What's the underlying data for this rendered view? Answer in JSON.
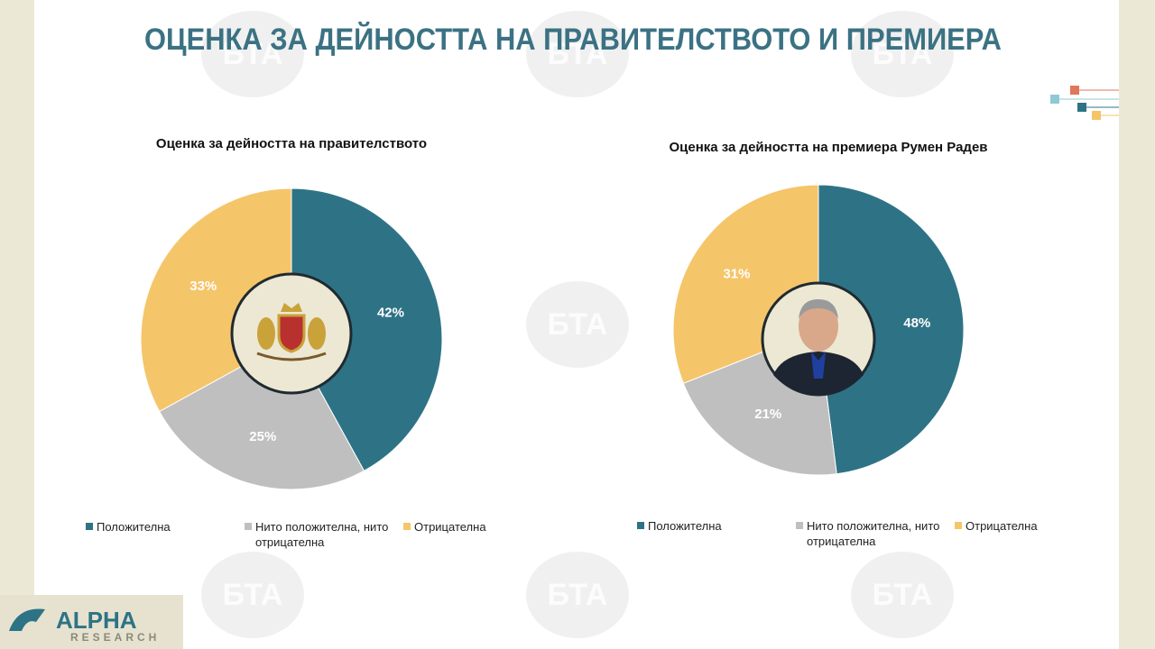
{
  "title": "ОЦЕНКА ЗА ДЕЙНОСТТА НА ПРАВИТЕЛСТВОТО И ПРЕМИЕРА",
  "watermark": "БТА",
  "logo": {
    "name": "ALPHA",
    "subtitle": "RESEARCH"
  },
  "chart_data": [
    {
      "type": "pie",
      "title": "Оценка за дейността на правителството",
      "categories": [
        "Положителна",
        "Нито положителна, нито отрицателна",
        "Отрицателна"
      ],
      "values": [
        42,
        25,
        33
      ],
      "value_labels": [
        "42%",
        "25%",
        "33%"
      ],
      "colors": [
        "#2e7385",
        "#bfbfbf",
        "#f5c56a"
      ],
      "legend": "bottom"
    },
    {
      "type": "pie",
      "title": "Оценка за дейността на премиера Румен Радев",
      "categories": [
        "Положителна",
        "Нито положителна, нито отрицателна",
        "Отрицателна"
      ],
      "values": [
        48,
        21,
        31
      ],
      "value_labels": [
        "48%",
        "21%",
        "31%"
      ],
      "colors": [
        "#2e7385",
        "#bfbfbf",
        "#f5c56a"
      ],
      "legend": "bottom"
    }
  ]
}
